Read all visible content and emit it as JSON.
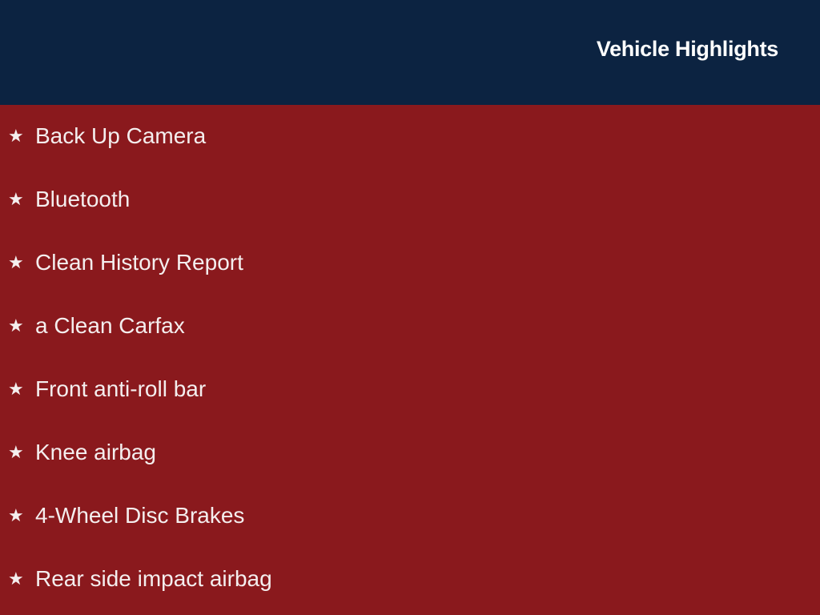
{
  "header": {
    "title": "Vehicle Highlights"
  },
  "colors": {
    "header_bg": "#0c2341",
    "body_bg": "#8a191d",
    "text": "#ffffff"
  },
  "bullet_icon": "star-icon",
  "highlights": [
    "Back Up Camera",
    "Bluetooth",
    "Clean History Report",
    "a Clean Carfax",
    "Front anti-roll bar",
    "Knee airbag",
    "4-Wheel Disc Brakes",
    "Rear side impact airbag"
  ]
}
